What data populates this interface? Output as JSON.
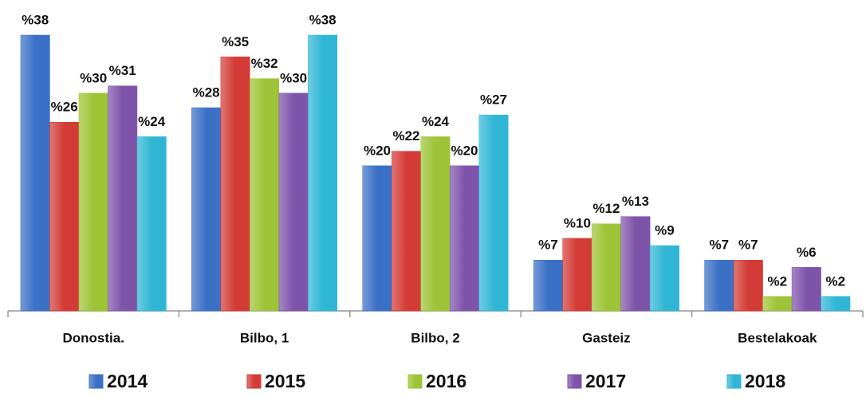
{
  "chart_data": {
    "type": "bar",
    "categories": [
      "Donostia.",
      "Bilbo, 1",
      "Bilbo, 2",
      "Gasteiz",
      "Bestelakoak"
    ],
    "series": [
      {
        "name": "2014",
        "color": "#3a70c6",
        "values": [
          38,
          28,
          20,
          7,
          7
        ],
        "value_labels": [
          "%38",
          "%28",
          "%20",
          "%7",
          "%7"
        ]
      },
      {
        "name": "2015",
        "color": "#d33b36",
        "values": [
          26,
          35,
          22,
          10,
          7
        ],
        "value_labels": [
          "%26",
          "%35",
          "%22",
          "%10",
          "%7"
        ]
      },
      {
        "name": "2016",
        "color": "#9dc436",
        "values": [
          30,
          32,
          24,
          12,
          2
        ],
        "value_labels": [
          "%30",
          "%32",
          "%24",
          "%12",
          "%2"
        ]
      },
      {
        "name": "2017",
        "color": "#7e53aa",
        "values": [
          31,
          30,
          20,
          13,
          6
        ],
        "value_labels": [
          "%31",
          "%30",
          "%20",
          "%13",
          "%6"
        ]
      },
      {
        "name": "2018",
        "color": "#30b6d5",
        "values": [
          24,
          38,
          27,
          9,
          2
        ],
        "value_labels": [
          "%24",
          "%38",
          "%27",
          "%9",
          "%2"
        ]
      }
    ],
    "ylim": [
      0,
      38
    ]
  }
}
